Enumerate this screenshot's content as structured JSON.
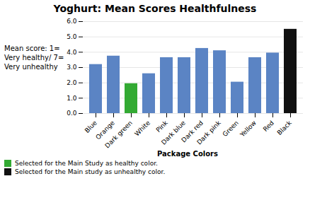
{
  "chart_data": {
    "type": "bar",
    "title": "Yoghurt: Mean Scores Healthfulness",
    "xlabel": "Package Colors",
    "ylabel": "Mean score: 1=\nVery healthy/ 7=\nVery unhealthy",
    "categories": [
      "Blue",
      "Orange",
      "Dark green",
      "White",
      "Pink",
      "Dark blue",
      "Dark red",
      "Dark pink",
      "Green",
      "Yellow",
      "Red",
      "Black"
    ],
    "values": [
      3.2,
      3.75,
      1.95,
      2.6,
      3.65,
      3.65,
      4.25,
      4.1,
      2.05,
      3.65,
      3.95,
      5.5
    ],
    "colors": [
      "#5B84C4",
      "#5B84C4",
      "#33AA33",
      "#5B84C4",
      "#5B84C4",
      "#5B84C4",
      "#5B84C4",
      "#5B84C4",
      "#5B84C4",
      "#5B84C4",
      "#5B84C4",
      "#111111"
    ],
    "ylim": [
      0,
      6
    ],
    "yticks": [
      0,
      1,
      2,
      3,
      4,
      5,
      6
    ],
    "grid": true,
    "legend": "bottom left",
    "legend_entries": [
      {
        "name": "Selected for the Main Study as healthy color.",
        "color": "#33AA33"
      },
      {
        "name": "Selected for the Main study as unhealthy color.",
        "color": "#111111"
      }
    ]
  }
}
